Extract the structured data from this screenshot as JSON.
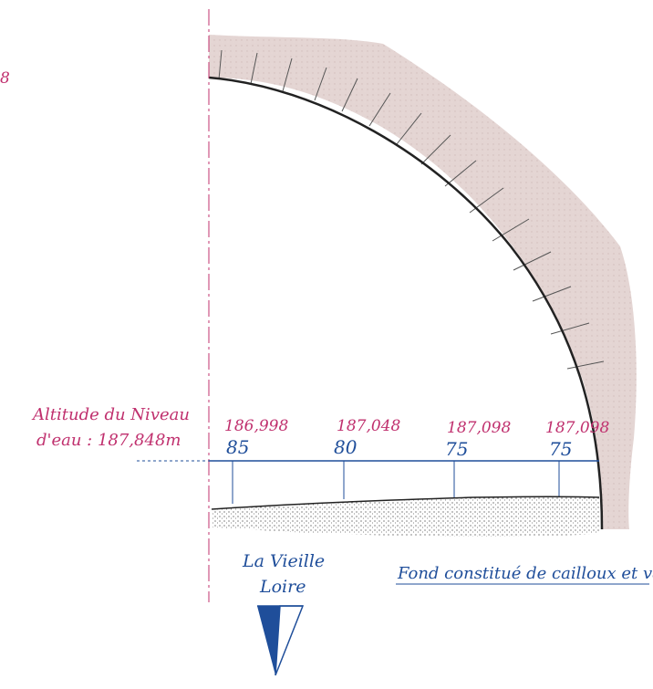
{
  "page_fragment": "8",
  "water_level": {
    "line1": "Altitude du Niveau",
    "line2": "d'eau : 187,848m"
  },
  "measurements": [
    {
      "altitude": "186,998",
      "depth": "85"
    },
    {
      "altitude": "187,048",
      "depth": "80"
    },
    {
      "altitude": "187,098",
      "depth": "75"
    },
    {
      "altitude": "187,098",
      "depth": "75"
    }
  ],
  "river_label": {
    "line1": "La Vieille",
    "line2": "Loire"
  },
  "bottom_note": "Fond constitué de cailloux et vase",
  "colors": {
    "magenta": "#c0306e",
    "blue": "#1f4e9a",
    "stone": "#e2d2d0",
    "axis": "#c0306e"
  }
}
